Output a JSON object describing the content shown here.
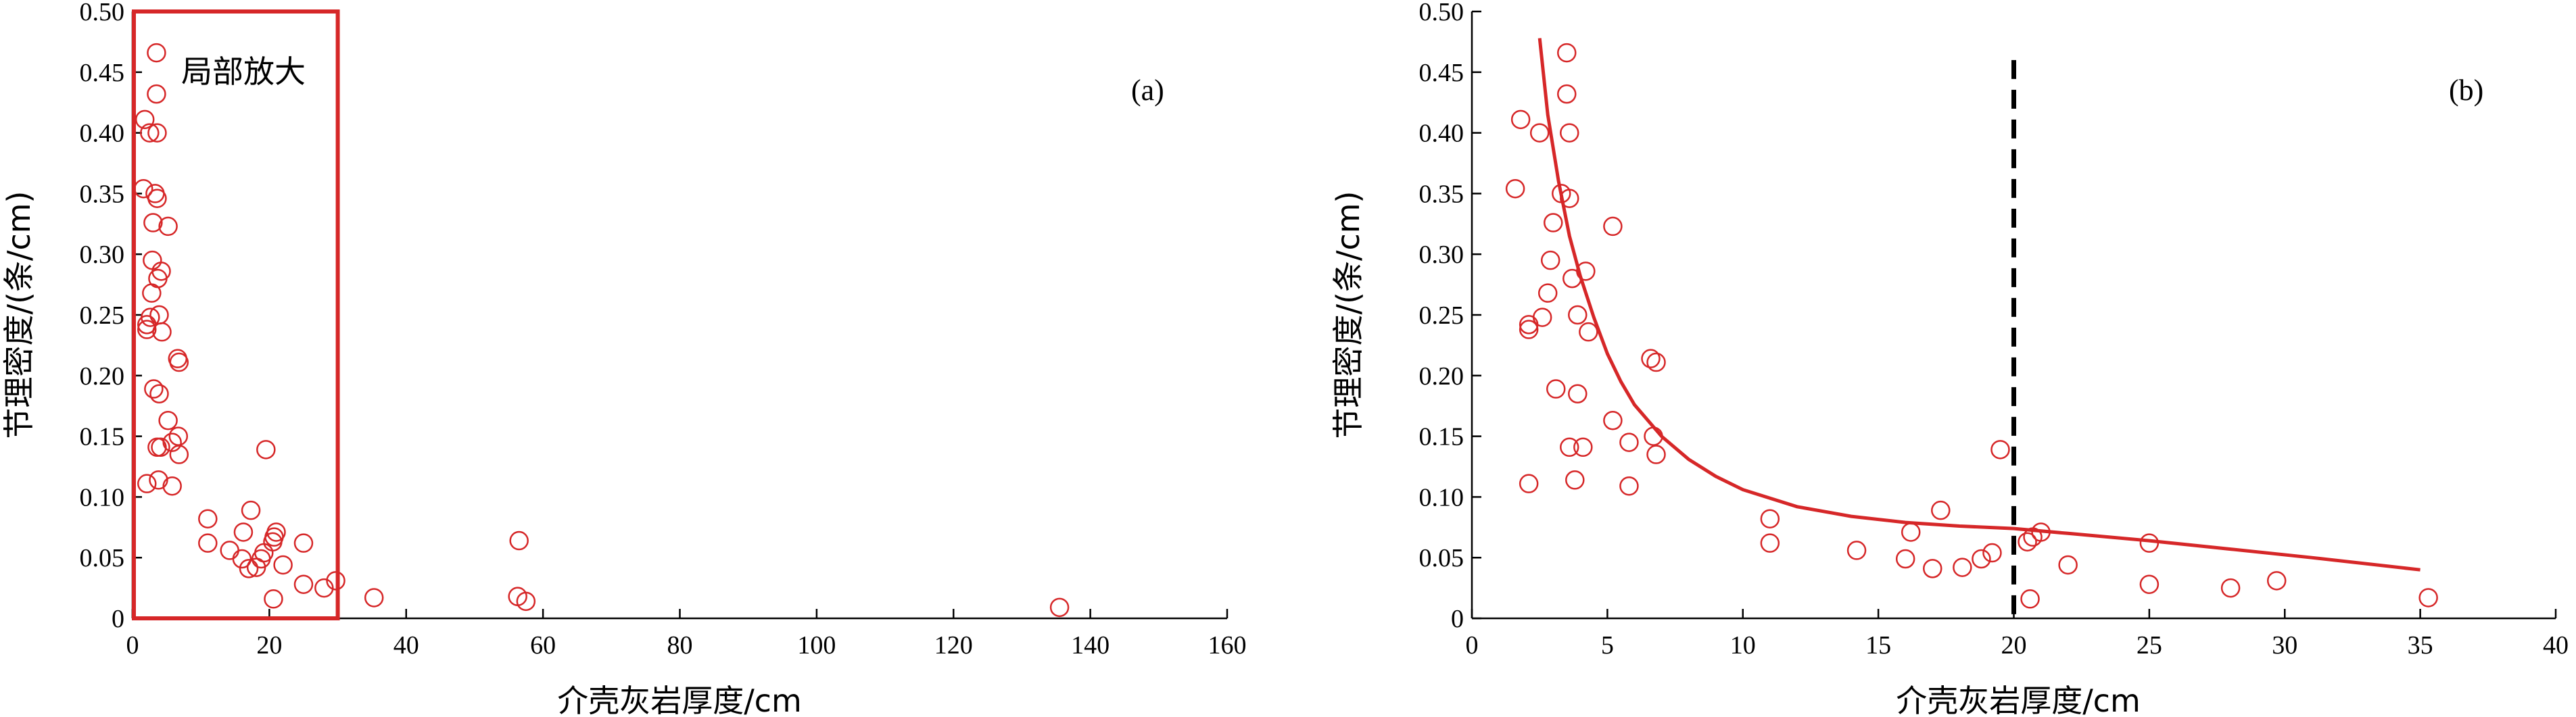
{
  "chart_data": [
    {
      "type": "scatter",
      "panel_label": "(a)",
      "xlabel": "介壳灰岩厚度/cm",
      "ylabel": "节理密度/(条/cm)",
      "xlim": [
        0,
        160
      ],
      "ylim": [
        0,
        0.5
      ],
      "x_ticks": [
        "0",
        "20",
        "40",
        "60",
        "80",
        "100",
        "120",
        "140",
        "160"
      ],
      "y_ticks": [
        "0",
        "0.05",
        "0.10",
        "0.15",
        "0.20",
        "0.25",
        "0.30",
        "0.35",
        "0.40",
        "0.45",
        "0.50"
      ],
      "highlight_box": {
        "x_range": [
          0,
          30
        ],
        "y_range": [
          0,
          0.5
        ],
        "label": "局部放大",
        "color": "#d62728"
      },
      "marker_color": "#d62728",
      "points": [
        [
          3.5,
          0.466
        ],
        [
          3.5,
          0.432
        ],
        [
          1.8,
          0.411
        ],
        [
          2.5,
          0.4
        ],
        [
          3.6,
          0.4
        ],
        [
          1.6,
          0.354
        ],
        [
          3.3,
          0.35
        ],
        [
          3.6,
          0.346
        ],
        [
          3.0,
          0.326
        ],
        [
          5.2,
          0.323
        ],
        [
          2.9,
          0.295
        ],
        [
          4.2,
          0.286
        ],
        [
          3.7,
          0.28
        ],
        [
          2.8,
          0.268
        ],
        [
          3.9,
          0.25
        ],
        [
          2.6,
          0.248
        ],
        [
          2.1,
          0.242
        ],
        [
          2.1,
          0.238
        ],
        [
          4.3,
          0.236
        ],
        [
          6.6,
          0.214
        ],
        [
          6.8,
          0.211
        ],
        [
          3.1,
          0.189
        ],
        [
          3.9,
          0.185
        ],
        [
          5.2,
          0.163
        ],
        [
          6.7,
          0.15
        ],
        [
          5.8,
          0.145
        ],
        [
          3.6,
          0.141
        ],
        [
          4.1,
          0.141
        ],
        [
          6.8,
          0.135
        ],
        [
          3.8,
          0.114
        ],
        [
          2.1,
          0.111
        ],
        [
          5.8,
          0.109
        ],
        [
          19.5,
          0.139
        ],
        [
          17.3,
          0.089
        ],
        [
          11.0,
          0.082
        ],
        [
          21.0,
          0.071
        ],
        [
          16.2,
          0.071
        ],
        [
          20.7,
          0.067
        ],
        [
          20.5,
          0.063
        ],
        [
          11.0,
          0.062
        ],
        [
          25.0,
          0.062
        ],
        [
          14.2,
          0.056
        ],
        [
          19.2,
          0.054
        ],
        [
          18.8,
          0.049
        ],
        [
          16.0,
          0.049
        ],
        [
          22.0,
          0.044
        ],
        [
          17.0,
          0.041
        ],
        [
          18.1,
          0.042
        ],
        [
          29.7,
          0.031
        ],
        [
          25.0,
          0.028
        ],
        [
          28.0,
          0.025
        ],
        [
          20.6,
          0.016
        ],
        [
          35.3,
          0.017
        ],
        [
          56.5,
          0.064
        ],
        [
          56.3,
          0.018
        ],
        [
          57.5,
          0.014
        ],
        [
          135.5,
          0.009
        ]
      ]
    },
    {
      "type": "scatter",
      "panel_label": "(b)",
      "xlabel": "介壳灰岩厚度/cm",
      "ylabel": "节理密度/(条/cm)",
      "xlim": [
        0,
        40
      ],
      "ylim": [
        0,
        0.5
      ],
      "x_ticks": [
        "0",
        "5",
        "10",
        "15",
        "20",
        "25",
        "30",
        "35",
        "40"
      ],
      "y_ticks": [
        "0",
        "0.05",
        "0.10",
        "0.15",
        "0.20",
        "0.25",
        "0.30",
        "0.35",
        "0.40",
        "0.45",
        "0.50"
      ],
      "marker_color": "#d62728",
      "dashed_line_x": 20,
      "fit_curve": {
        "color": "#d62728",
        "points": [
          [
            2.5,
            0.478
          ],
          [
            2.8,
            0.415
          ],
          [
            3.2,
            0.36
          ],
          [
            3.6,
            0.315
          ],
          [
            4.0,
            0.282
          ],
          [
            4.5,
            0.248
          ],
          [
            5.0,
            0.218
          ],
          [
            5.5,
            0.195
          ],
          [
            6.0,
            0.176
          ],
          [
            7.0,
            0.15
          ],
          [
            8.0,
            0.131
          ],
          [
            9.0,
            0.117
          ],
          [
            10.0,
            0.106
          ],
          [
            12.0,
            0.092
          ],
          [
            14.0,
            0.084
          ],
          [
            16.0,
            0.079
          ],
          [
            18.0,
            0.076
          ],
          [
            20.0,
            0.074
          ],
          [
            22.0,
            0.07
          ],
          [
            25.0,
            0.064
          ],
          [
            28.0,
            0.057
          ],
          [
            31.0,
            0.05
          ],
          [
            35.0,
            0.04
          ]
        ]
      },
      "points": [
        [
          3.5,
          0.466
        ],
        [
          3.5,
          0.432
        ],
        [
          1.8,
          0.411
        ],
        [
          2.5,
          0.4
        ],
        [
          3.6,
          0.4
        ],
        [
          1.6,
          0.354
        ],
        [
          3.3,
          0.35
        ],
        [
          3.6,
          0.346
        ],
        [
          3.0,
          0.326
        ],
        [
          5.2,
          0.323
        ],
        [
          2.9,
          0.295
        ],
        [
          4.2,
          0.286
        ],
        [
          3.7,
          0.28
        ],
        [
          2.8,
          0.268
        ],
        [
          3.9,
          0.25
        ],
        [
          2.6,
          0.248
        ],
        [
          2.1,
          0.242
        ],
        [
          2.1,
          0.238
        ],
        [
          4.3,
          0.236
        ],
        [
          6.6,
          0.214
        ],
        [
          6.8,
          0.211
        ],
        [
          3.1,
          0.189
        ],
        [
          3.9,
          0.185
        ],
        [
          5.2,
          0.163
        ],
        [
          6.7,
          0.15
        ],
        [
          5.8,
          0.145
        ],
        [
          3.6,
          0.141
        ],
        [
          4.1,
          0.141
        ],
        [
          6.8,
          0.135
        ],
        [
          3.8,
          0.114
        ],
        [
          2.1,
          0.111
        ],
        [
          5.8,
          0.109
        ],
        [
          19.5,
          0.139
        ],
        [
          17.3,
          0.089
        ],
        [
          11.0,
          0.082
        ],
        [
          21.0,
          0.071
        ],
        [
          16.2,
          0.071
        ],
        [
          20.7,
          0.067
        ],
        [
          20.5,
          0.063
        ],
        [
          11.0,
          0.062
        ],
        [
          25.0,
          0.062
        ],
        [
          14.2,
          0.056
        ],
        [
          19.2,
          0.054
        ],
        [
          18.8,
          0.049
        ],
        [
          16.0,
          0.049
        ],
        [
          22.0,
          0.044
        ],
        [
          17.0,
          0.041
        ],
        [
          18.1,
          0.042
        ],
        [
          29.7,
          0.031
        ],
        [
          25.0,
          0.028
        ],
        [
          28.0,
          0.025
        ],
        [
          20.6,
          0.016
        ],
        [
          35.3,
          0.017
        ]
      ]
    }
  ]
}
